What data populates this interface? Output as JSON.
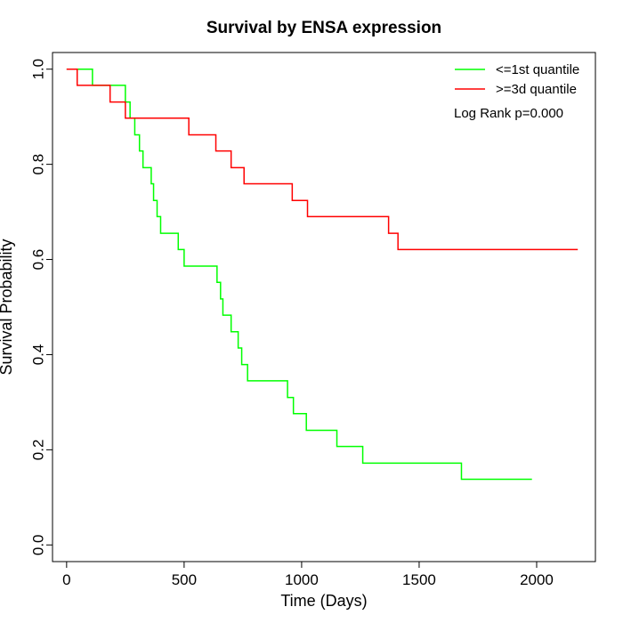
{
  "chart_data": {
    "type": "line",
    "title": "Survival by ENSA expression",
    "xlabel": "Time (Days)",
    "ylabel": "Survival Probability",
    "xlim": [
      -60,
      2250
    ],
    "ylim": [
      -0.035,
      1.035
    ],
    "xticks": [
      0,
      500,
      1000,
      1500,
      2000
    ],
    "yticks": [
      0.0,
      0.2,
      0.4,
      0.6,
      0.8,
      1.0
    ],
    "xtick_labels": [
      "0",
      "500",
      "1000",
      "1500",
      "2000"
    ],
    "ytick_labels": [
      "0.0",
      "0.2",
      "0.4",
      "0.6",
      "0.8",
      "1.0"
    ],
    "legend_position": "top-right",
    "annotation": "Log Rank p=0.000",
    "series": [
      {
        "name": "<=1st quantile",
        "color": "#00ff00",
        "step": true,
        "x": [
          0,
          110,
          250,
          270,
          290,
          310,
          325,
          340,
          360,
          370,
          385,
          400,
          475,
          500,
          640,
          655,
          665,
          680,
          700,
          730,
          745,
          770,
          940,
          965,
          1020,
          1150,
          1260,
          1680,
          1980
        ],
        "y": [
          1.0,
          0.966,
          0.931,
          0.897,
          0.862,
          0.828,
          0.793,
          0.793,
          0.759,
          0.724,
          0.69,
          0.655,
          0.621,
          0.586,
          0.552,
          0.517,
          0.483,
          0.483,
          0.448,
          0.414,
          0.379,
          0.345,
          0.31,
          0.276,
          0.241,
          0.207,
          0.172,
          0.138,
          0.138
        ]
      },
      {
        "name": ">=3d quantile",
        "color": "#ff0000",
        "step": true,
        "x": [
          0,
          45,
          185,
          250,
          520,
          635,
          700,
          755,
          960,
          1025,
          1370,
          1410,
          2175
        ],
        "y": [
          1.0,
          0.966,
          0.931,
          0.897,
          0.862,
          0.828,
          0.793,
          0.759,
          0.724,
          0.69,
          0.655,
          0.621,
          0.621
        ]
      }
    ]
  }
}
